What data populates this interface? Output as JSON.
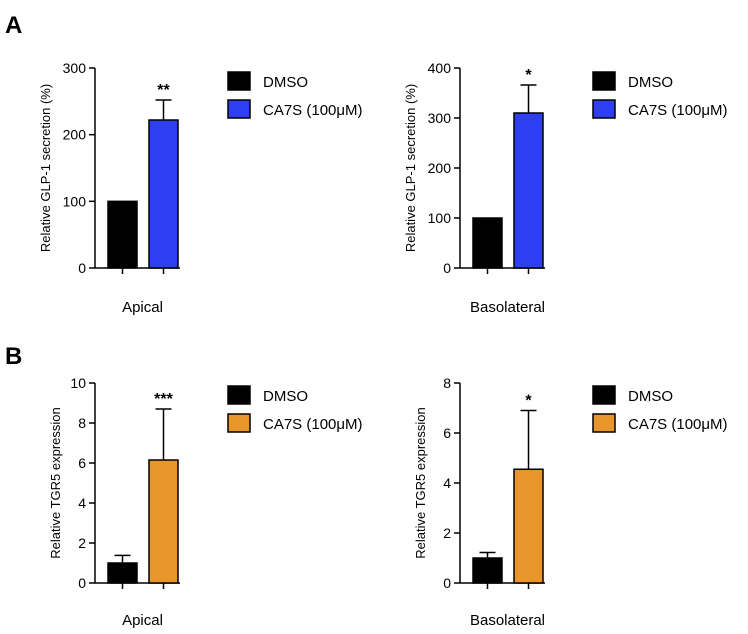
{
  "panels": {
    "A": {
      "label": "A"
    },
    "B": {
      "label": "B"
    }
  },
  "colors": {
    "dmso": "#000000",
    "ca7s_blue": "#2d3ff0",
    "ca7s_orange": "#e8952c"
  },
  "chart_data": [
    {
      "id": "a-left",
      "panel": "A",
      "type": "bar",
      "title": "",
      "xlabel": "Apical",
      "ylabel": "Relative GLP-1 secretion (%)",
      "ylim": [
        0,
        300
      ],
      "yticks": [
        0,
        100,
        200,
        300
      ],
      "categories": [
        "DMSO",
        "CA7S (100μM)"
      ],
      "values": [
        100,
        222
      ],
      "errors": [
        0,
        30
      ],
      "colors": [
        "#000000",
        "#2d3ff0"
      ],
      "significance": "**",
      "legend": [
        "DMSO",
        "CA7S (100μM)"
      ]
    },
    {
      "id": "a-right",
      "panel": "A",
      "type": "bar",
      "title": "",
      "xlabel": "Basolateral",
      "ylabel": "Relative GLP-1 secretion (%)",
      "ylim": [
        0,
        400
      ],
      "yticks": [
        0,
        100,
        200,
        300,
        400
      ],
      "categories": [
        "DMSO",
        "CA7S (100μM)"
      ],
      "values": [
        100,
        310
      ],
      "errors": [
        0,
        56
      ],
      "colors": [
        "#000000",
        "#2d3ff0"
      ],
      "significance": "*",
      "legend": [
        "DMSO",
        "CA7S (100μM)"
      ]
    },
    {
      "id": "b-left",
      "panel": "B",
      "type": "bar",
      "title": "",
      "xlabel": "Apical",
      "ylabel": "Relative TGR5 expression",
      "ylim": [
        0,
        10
      ],
      "yticks": [
        0,
        2,
        4,
        6,
        8,
        10
      ],
      "categories": [
        "DMSO",
        "CA7S (100μM)"
      ],
      "values": [
        1.0,
        6.15
      ],
      "errors": [
        0.38,
        2.55
      ],
      "colors": [
        "#000000",
        "#e8952c"
      ],
      "significance": "***",
      "legend": [
        "DMSO",
        "CA7S (100μM)"
      ]
    },
    {
      "id": "b-right",
      "panel": "B",
      "type": "bar",
      "title": "",
      "xlabel": "Basolateral",
      "ylabel": "Relative TGR5 expression",
      "ylim": [
        0,
        8
      ],
      "yticks": [
        0,
        2,
        4,
        6,
        8
      ],
      "categories": [
        "DMSO",
        "CA7S (100μM)"
      ],
      "values": [
        1.0,
        4.55
      ],
      "errors": [
        0.22,
        2.35
      ],
      "colors": [
        "#000000",
        "#e8952c"
      ],
      "significance": "*",
      "legend": [
        "DMSO",
        "CA7S (100μM)"
      ]
    }
  ]
}
